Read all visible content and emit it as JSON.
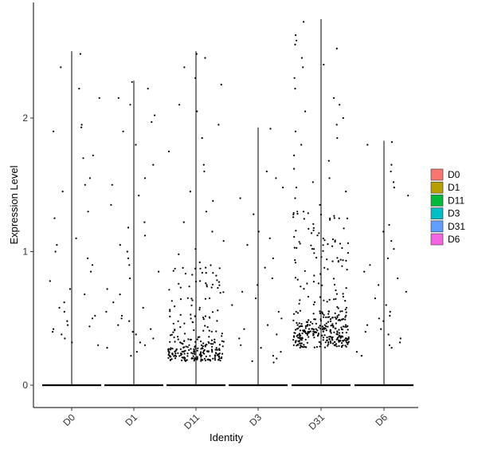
{
  "chart_data": {
    "type": "scatter",
    "subtype": "violin-jitter",
    "xlabel": "Identity",
    "ylabel": "Expression Level",
    "categories": [
      "D0",
      "D1",
      "D11",
      "D3",
      "D31",
      "D6"
    ],
    "ylim": [
      -0.15,
      2.87
    ],
    "yticks": [
      0,
      1,
      2
    ],
    "grid": false,
    "legend": {
      "position": "right",
      "entries": [
        {
          "label": "D0",
          "color": "#F8766D"
        },
        {
          "label": "D1",
          "color": "#B79F00"
        },
        {
          "label": "D11",
          "color": "#00BA38"
        },
        {
          "label": "D3",
          "color": "#00BFC4"
        },
        {
          "label": "D31",
          "color": "#619CFF"
        },
        {
          "label": "D6",
          "color": "#F564E3"
        }
      ]
    },
    "series": [
      {
        "name": "D0",
        "max": 2.5,
        "zero_fraction": 0.92,
        "nonzero_points": [
          2.48,
          2.38,
          2.22,
          2.15,
          1.95,
          1.93,
          1.9,
          1.72,
          1.7,
          1.55,
          1.5,
          1.45,
          1.3,
          1.25,
          1.1,
          1.05,
          1.0,
          0.95,
          0.9,
          0.85,
          0.78,
          0.72,
          0.68,
          0.62,
          0.58,
          0.55,
          0.52,
          0.5,
          0.48,
          0.45,
          0.44,
          0.42,
          0.4,
          0.38,
          0.35,
          0.32,
          0.3
        ]
      },
      {
        "name": "D1",
        "max": 2.28,
        "zero_fraction": 0.9,
        "nonzero_points": [
          2.27,
          2.22,
          2.15,
          2.1,
          2.02,
          1.97,
          1.9,
          1.8,
          1.65,
          1.55,
          1.5,
          1.42,
          1.35,
          1.22,
          1.18,
          1.12,
          1.05,
          1.0,
          0.95,
          0.9,
          0.85,
          0.8,
          0.72,
          0.68,
          0.62,
          0.58,
          0.55,
          0.52,
          0.5,
          0.48,
          0.45,
          0.42,
          0.4,
          0.38,
          0.35,
          0.32,
          0.3,
          0.28,
          0.25,
          0.22
        ]
      },
      {
        "name": "D11",
        "max": 2.5,
        "zero_fraction": 0.78,
        "nonzero_points": [
          2.48,
          2.45,
          2.38,
          2.3,
          2.25,
          2.1,
          2.05,
          1.95,
          1.85,
          1.75,
          1.65,
          1.6,
          1.45,
          1.38,
          1.3,
          1.22,
          1.15,
          1.08,
          1.02,
          0.98,
          0.92,
          0.88,
          0.82,
          0.78,
          0.75
        ]
      },
      {
        "name": "D3",
        "max": 1.93,
        "zero_fraction": 0.92,
        "nonzero_points": [
          1.92,
          1.6,
          1.55,
          1.48,
          1.4,
          1.28,
          1.15,
          1.1,
          1.05,
          0.95,
          0.88,
          0.8,
          0.75,
          0.7,
          0.65,
          0.6,
          0.55,
          0.5,
          0.45,
          0.42,
          0.38,
          0.35,
          0.3,
          0.28,
          0.25,
          0.22,
          0.2,
          0.18,
          0.17
        ]
      },
      {
        "name": "D31",
        "max": 2.74,
        "zero_fraction": 0.55,
        "nonzero_points": [
          2.72,
          2.62,
          2.58,
          2.55,
          2.52,
          2.45,
          2.4,
          2.38,
          2.3,
          2.22,
          2.15,
          2.1,
          2.05,
          2.0,
          1.95,
          1.9,
          1.85,
          1.8,
          1.72,
          1.68,
          1.62,
          1.55,
          1.52,
          1.48,
          1.45,
          1.4,
          1.35,
          1.3
        ]
      },
      {
        "name": "D6",
        "max": 1.83,
        "zero_fraction": 0.93,
        "nonzero_points": [
          1.82,
          1.8,
          1.65,
          1.6,
          1.52,
          1.48,
          1.42,
          1.2,
          1.15,
          1.08,
          1.02,
          0.95,
          0.9,
          0.85,
          0.8,
          0.75,
          0.7,
          0.65,
          0.6,
          0.55,
          0.52,
          0.5,
          0.48,
          0.45,
          0.42,
          0.4,
          0.38,
          0.35,
          0.32,
          0.3,
          0.28,
          0.25,
          0.22
        ]
      }
    ]
  }
}
